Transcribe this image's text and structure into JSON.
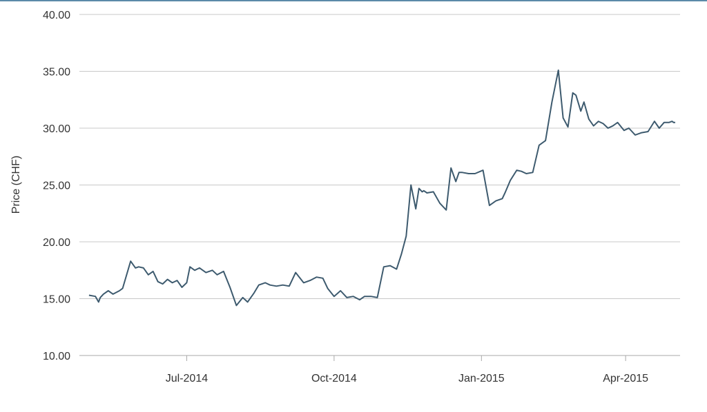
{
  "chart_data": {
    "type": "line",
    "title": "",
    "xlabel": "",
    "ylabel": "Price (CHF)",
    "ylim": [
      10,
      40
    ],
    "y_ticks": [
      "10.00",
      "15.00",
      "20.00",
      "25.00",
      "30.00",
      "35.00",
      "40.00"
    ],
    "x_tick_labels": [
      {
        "date": "2014-07-01",
        "label": "Jul-2014"
      },
      {
        "date": "2014-10-01",
        "label": "Oct-2014"
      },
      {
        "date": "2015-01-01",
        "label": "Jan-2015"
      },
      {
        "date": "2015-04-01",
        "label": "Apr-2015"
      }
    ],
    "xlim": [
      "2014-04-25",
      "2015-05-05"
    ],
    "grid": "horizontal",
    "line_color": "#3d5a6e",
    "grid_color": "#c8c8c8",
    "series": [
      {
        "x": [
          "2014-05-01",
          "2014-05-05",
          "2014-05-07",
          "2014-05-08",
          "2014-05-10",
          "2014-05-13",
          "2014-05-16",
          "2014-05-20",
          "2014-05-22",
          "2014-05-27",
          "2014-05-30",
          "2014-06-01",
          "2014-06-04",
          "2014-06-07",
          "2014-06-10",
          "2014-06-13",
          "2014-06-16",
          "2014-06-19",
          "2014-06-22",
          "2014-06-25",
          "2014-06-28",
          "2014-07-01",
          "2014-07-03",
          "2014-07-06",
          "2014-07-09",
          "2014-07-13",
          "2014-07-17",
          "2014-07-20",
          "2014-07-24",
          "2014-07-28",
          "2014-08-01",
          "2014-08-05",
          "2014-08-08",
          "2014-08-12",
          "2014-08-15",
          "2014-08-19",
          "2014-08-22",
          "2014-08-26",
          "2014-08-30",
          "2014-09-03",
          "2014-09-07",
          "2014-09-12",
          "2014-09-16",
          "2014-09-20",
          "2014-09-24",
          "2014-09-27",
          "2014-10-01",
          "2014-10-05",
          "2014-10-09",
          "2014-10-13",
          "2014-10-17",
          "2014-10-20",
          "2014-10-24",
          "2014-10-28",
          "2014-11-01",
          "2014-11-05",
          "2014-11-09",
          "2014-11-12",
          "2014-11-15",
          "2014-11-18",
          "2014-11-21",
          "2014-11-23",
          "2014-11-25",
          "2014-11-26",
          "2014-11-28",
          "2014-12-02",
          "2014-12-06",
          "2014-12-10",
          "2014-12-13",
          "2014-12-16",
          "2014-12-18",
          "2014-12-20",
          "2014-12-24",
          "2014-12-28",
          "2015-01-02",
          "2015-01-06",
          "2015-01-10",
          "2015-01-14",
          "2015-01-16",
          "2015-01-19",
          "2015-01-23",
          "2015-01-26",
          "2015-01-29",
          "2015-02-02",
          "2015-02-06",
          "2015-02-10",
          "2015-02-14",
          "2015-02-18",
          "2015-02-21",
          "2015-02-24",
          "2015-02-27",
          "2015-03-01",
          "2015-03-04",
          "2015-03-06",
          "2015-03-09",
          "2015-03-12",
          "2015-03-15",
          "2015-03-18",
          "2015-03-21",
          "2015-03-24",
          "2015-03-27",
          "2015-03-31",
          "2015-04-03",
          "2015-04-07",
          "2015-04-11",
          "2015-04-15",
          "2015-04-19",
          "2015-04-22",
          "2015-04-25",
          "2015-04-28",
          "2015-04-30",
          "2015-05-01",
          "2015-05-02"
        ],
        "y": [
          15.3,
          15.2,
          14.7,
          15.1,
          15.4,
          15.7,
          15.4,
          15.7,
          15.9,
          18.3,
          17.7,
          17.8,
          17.7,
          17.1,
          17.4,
          16.5,
          16.3,
          16.7,
          16.4,
          16.6,
          16.0,
          16.4,
          17.8,
          17.5,
          17.7,
          17.3,
          17.5,
          17.1,
          17.4,
          16.0,
          14.4,
          15.1,
          14.7,
          15.5,
          16.2,
          16.4,
          16.2,
          16.1,
          16.2,
          16.1,
          17.3,
          16.4,
          16.6,
          16.9,
          16.8,
          15.9,
          15.2,
          15.7,
          15.1,
          15.2,
          14.9,
          15.2,
          15.2,
          15.1,
          17.8,
          17.9,
          17.6,
          18.9,
          20.5,
          25.0,
          22.9,
          24.7,
          24.4,
          24.5,
          24.3,
          24.4,
          23.4,
          22.8,
          26.5,
          25.3,
          26.1,
          26.1,
          26.0,
          26.0,
          26.3,
          23.2,
          23.6,
          23.8,
          24.4,
          25.4,
          26.3,
          26.2,
          26.0,
          26.1,
          28.5,
          28.9,
          32.3,
          35.1,
          30.9,
          30.1,
          33.1,
          32.9,
          31.5,
          32.3,
          30.8,
          30.2,
          30.6,
          30.4,
          30.0,
          30.2,
          30.5,
          29.8,
          30.0,
          29.4,
          29.6,
          29.7,
          30.6,
          30.0,
          30.5,
          30.5,
          30.6,
          30.5,
          30.5
        ]
      }
    ]
  }
}
